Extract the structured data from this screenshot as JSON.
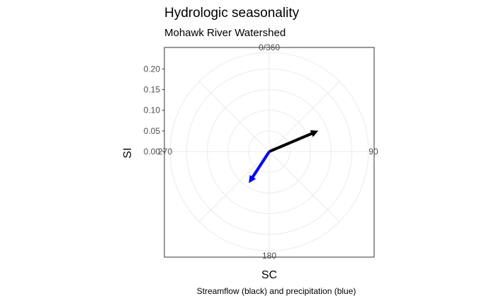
{
  "title": "Hydrologic seasonality",
  "subtitle": "Mohawk River Watershed",
  "caption": "Streamflow (black) and precipitation (blue)",
  "chart_data": {
    "type": "polar-vector",
    "xlabel": "SC",
    "ylabel": "SI",
    "angle_labels": [
      {
        "angle": 0,
        "text": "0/360"
      },
      {
        "angle": 90,
        "text": "90"
      },
      {
        "angle": 180,
        "text": "180"
      },
      {
        "angle": 270,
        "text": "270"
      }
    ],
    "rlim": [
      0,
      0.24
    ],
    "r_ticks": [
      0.0,
      0.05,
      0.1,
      0.15,
      0.2
    ],
    "r_tick_labels": [
      "0.00",
      "0.05",
      "0.10",
      "0.15",
      "0.20"
    ],
    "grid": true,
    "series": [
      {
        "name": "Streamflow",
        "color": "#000000",
        "angle": 67,
        "magnitude": 0.12
      },
      {
        "name": "Precipitation",
        "color": "#0000ff",
        "angle": 213,
        "magnitude": 0.082
      }
    ]
  }
}
